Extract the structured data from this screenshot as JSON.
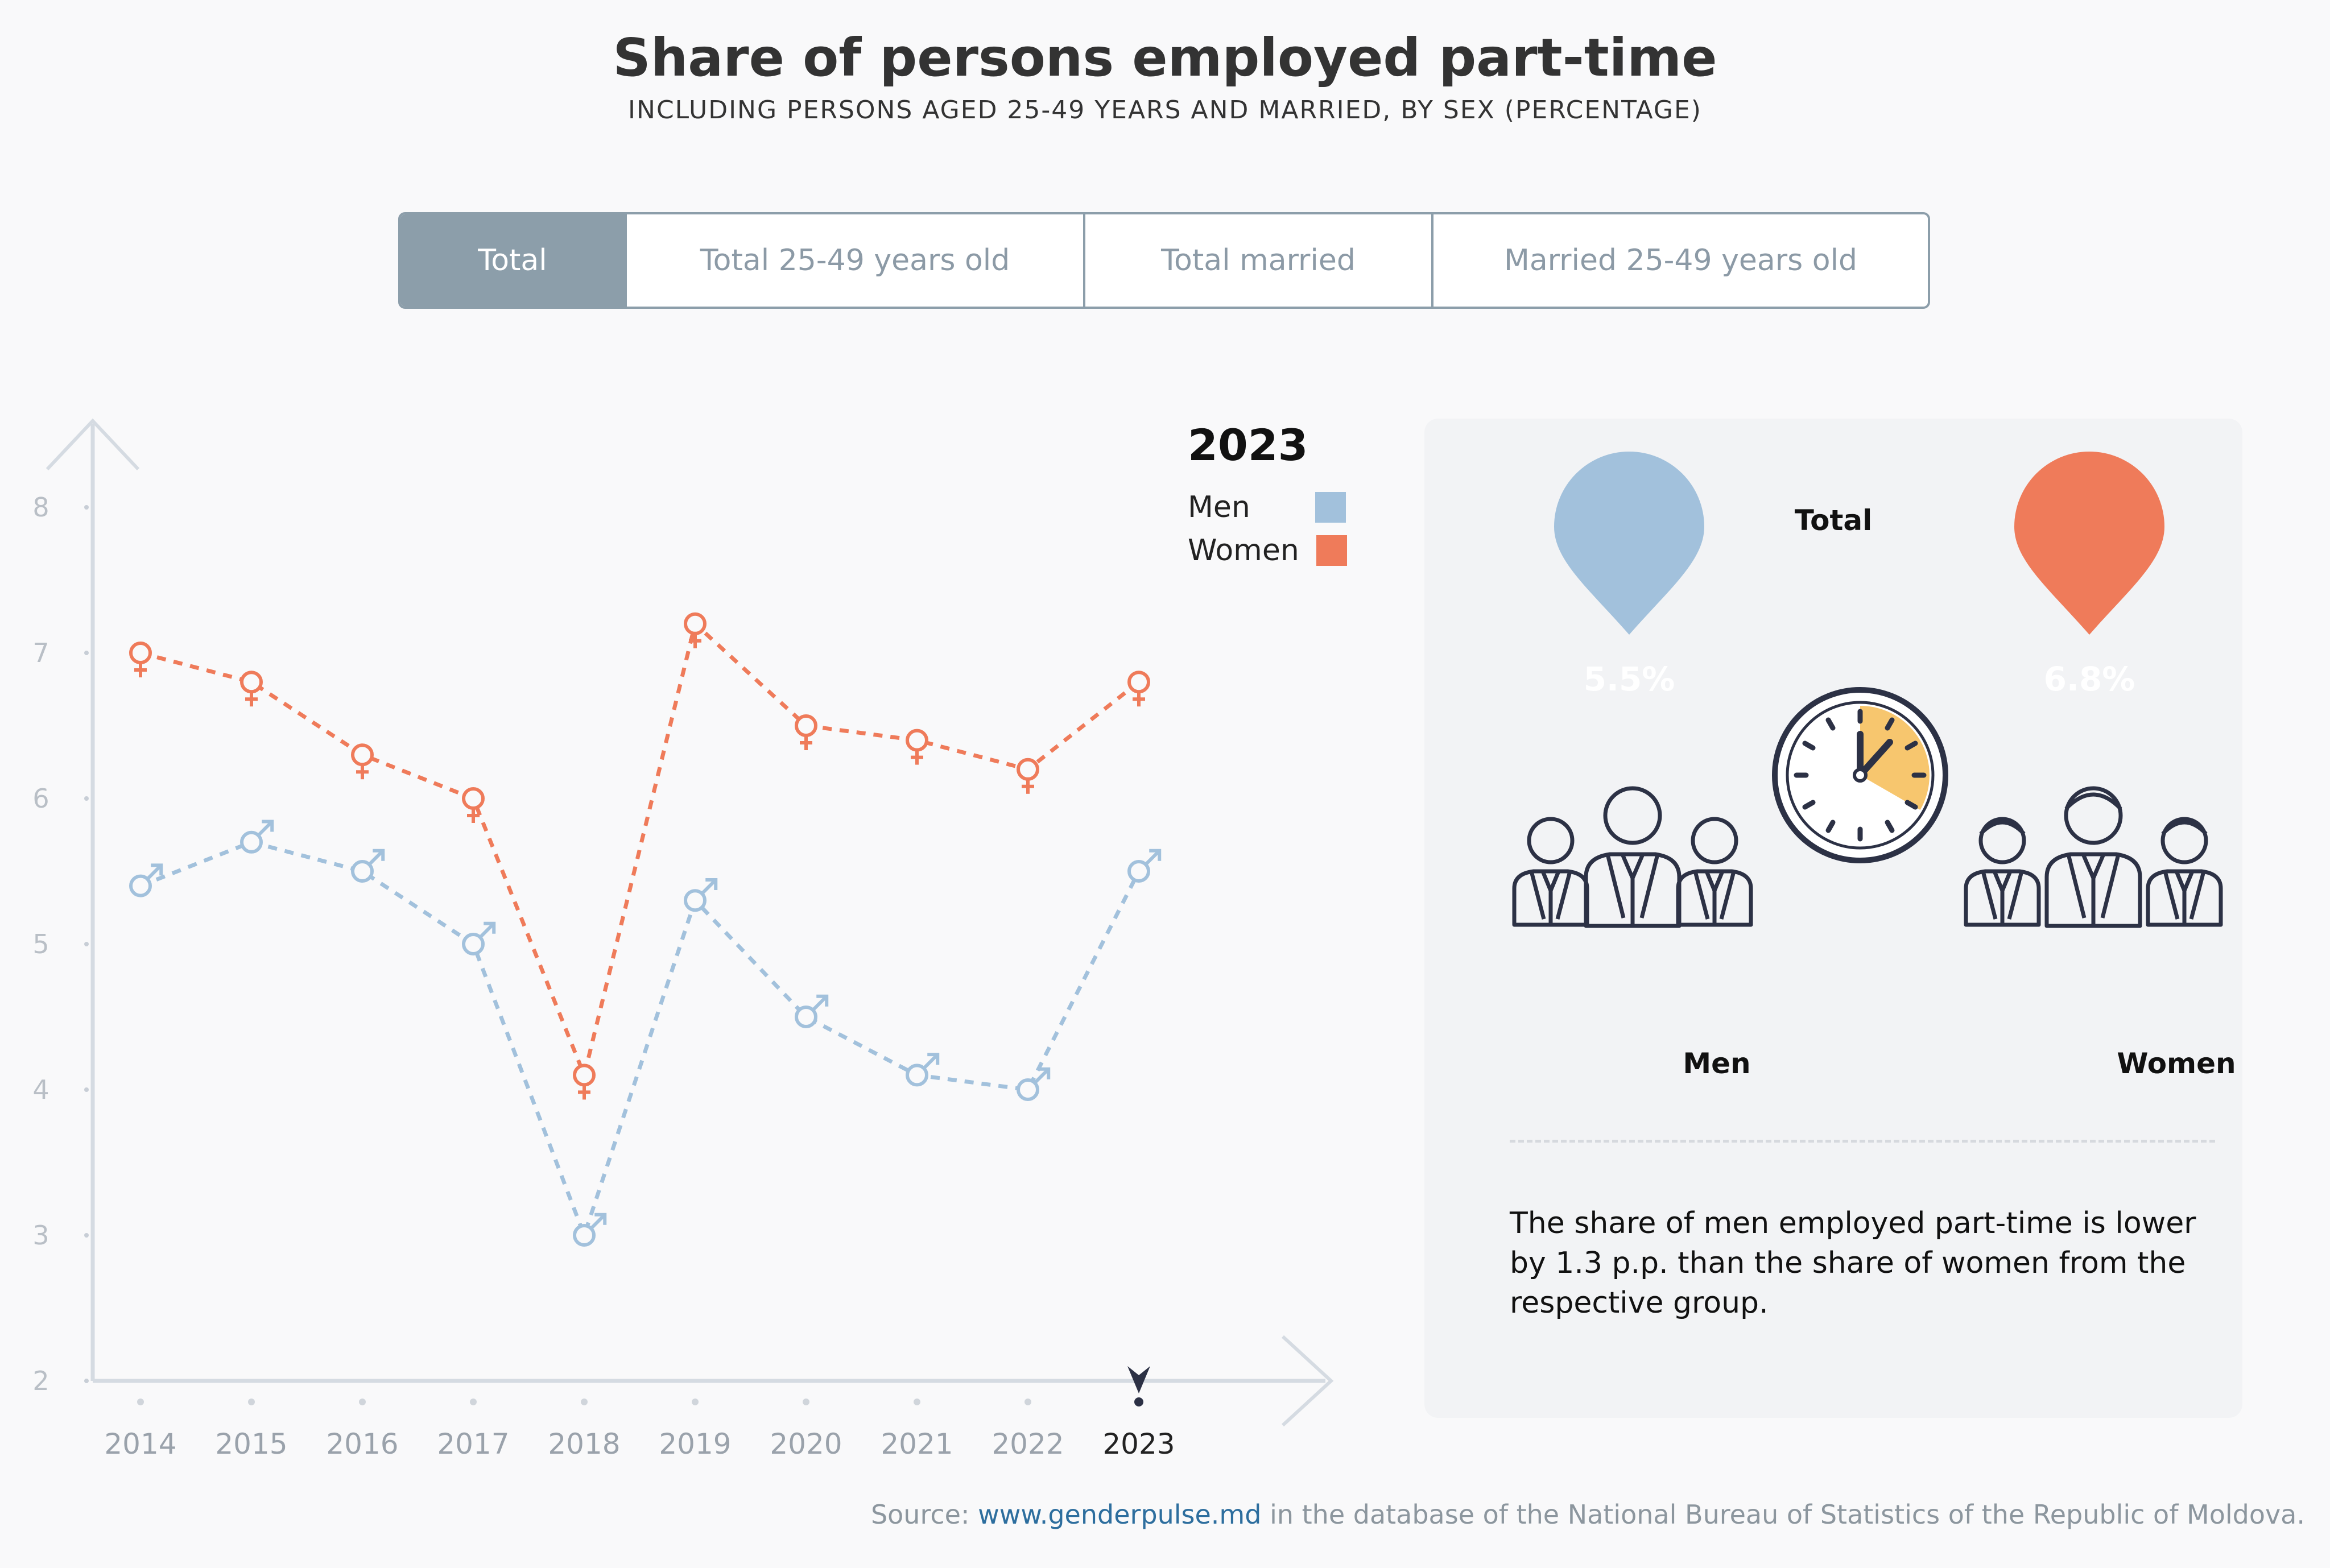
{
  "header": {
    "title": "Share of persons employed part-time",
    "subtitle": "INCLUDING PERSONS AGED 25-49 YEARS AND MARRIED, BY SEX (PERCENTAGE)"
  },
  "tabs": [
    {
      "label": "Total",
      "active": true
    },
    {
      "label": "Total 25-49 years old",
      "active": false
    },
    {
      "label": "Total married",
      "active": false
    },
    {
      "label": "Married 25-49 years old",
      "active": false
    }
  ],
  "legend": {
    "year": "2023",
    "men_label": "Men",
    "women_label": "Women"
  },
  "colors": {
    "men": "#a2c1dc",
    "women": "#ef7b5a",
    "axis": "#d5dbe2",
    "tab_active": "#8c9eaa"
  },
  "chart_data": {
    "type": "line",
    "x": [
      "2014",
      "2015",
      "2016",
      "2017",
      "2018",
      "2019",
      "2020",
      "2021",
      "2022",
      "2023"
    ],
    "selected_x": "2023",
    "ylim": [
      2,
      8
    ],
    "yticks": [
      2,
      3,
      4,
      5,
      6,
      7,
      8
    ],
    "grid": false,
    "legend_position": "top-right",
    "series": [
      {
        "name": "Women",
        "color": "#ef7b5a",
        "marker": "female-symbol",
        "values": [
          7.0,
          6.8,
          6.3,
          6.0,
          4.1,
          7.2,
          6.5,
          6.4,
          6.2,
          6.8
        ]
      },
      {
        "name": "Men",
        "color": "#a2c1dc",
        "marker": "male-symbol",
        "values": [
          5.4,
          5.7,
          5.5,
          5.0,
          3.0,
          5.3,
          4.5,
          4.1,
          4.0,
          5.5
        ]
      }
    ]
  },
  "panel": {
    "group_title": "Total",
    "men_value": "5.5%",
    "women_value": "6.8%",
    "men_label": "Men",
    "women_label": "Women",
    "note": "The share of men employed part-time is lower by 1.3 p.p. than the share of women from the respective group.",
    "icons": [
      "location-pin-icon",
      "clock-icon",
      "people-group-icon"
    ]
  },
  "source": {
    "prefix": "Source: ",
    "link": "www.genderpulse.md",
    "suffix": " in the database of the National Bureau of Statistics of the Republic of Moldova."
  }
}
